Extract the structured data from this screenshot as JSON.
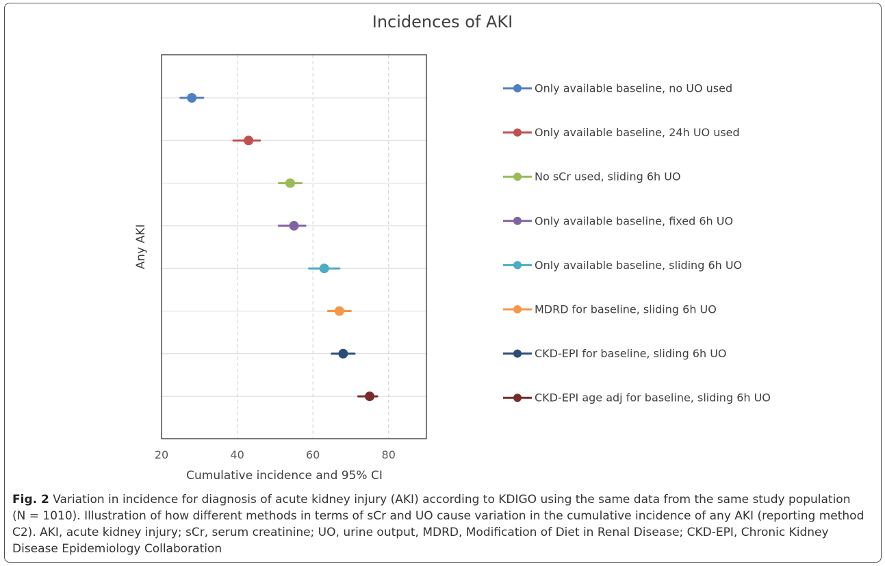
{
  "chart_data": {
    "type": "scatter",
    "title": "Incidences of AKI",
    "xlabel": "Cumulative incidence and 95% CI",
    "ylabel": "Any AKI",
    "xlim": [
      20,
      90
    ],
    "xticks": [
      20,
      40,
      60,
      80
    ],
    "grid": "vertical dashed at x ticks; horizontal at each series",
    "legend_position": "right",
    "series": [
      {
        "name": "Only available baseline, no UO used",
        "value": 28,
        "ci": [
          25,
          31
        ],
        "color": "#4e7fc0"
      },
      {
        "name": "Only available baseline, 24h UO used",
        "value": 43,
        "ci": [
          39,
          46
        ],
        "color": "#c0504d"
      },
      {
        "name": "No sCr used, sliding 6h UO",
        "value": 54,
        "ci": [
          51,
          57
        ],
        "color": "#9bbb59"
      },
      {
        "name": "Only available baseline, fixed 6h UO",
        "value": 55,
        "ci": [
          51,
          58
        ],
        "color": "#8064a2"
      },
      {
        "name": "Only available baseline, sliding 6h UO",
        "value": 63,
        "ci": [
          59,
          67
        ],
        "color": "#4bacc6"
      },
      {
        "name": "MDRD for baseline, sliding 6h UO",
        "value": 67,
        "ci": [
          64,
          70
        ],
        "color": "#f79646"
      },
      {
        "name": "CKD-EPI for baseline, sliding 6h UO",
        "value": 68,
        "ci": [
          65,
          71
        ],
        "color": "#2c4d75"
      },
      {
        "name": "CKD-EPI age adj for baseline, sliding 6h UO",
        "value": 75,
        "ci": [
          72,
          77
        ],
        "color": "#772c2a"
      }
    ]
  },
  "caption": {
    "label": "Fig. 2",
    "line1": "Variation in incidence for diagnosis of acute kidney injury (AKI) according to KDIGO using the same data from the same study population",
    "line2": "(N = 1010). Illustration of how different methods in terms of sCr and UO cause variation in the cumulative incidence of any AKI (reporting method",
    "line3": "C2). AKI, acute kidney injury; sCr, serum creatinine; UO, urine output, MDRD, Modification of Diet in Renal Disease; CKD-EPI, Chronic Kidney",
    "line4": "Disease Epidemiology Collaboration"
  }
}
